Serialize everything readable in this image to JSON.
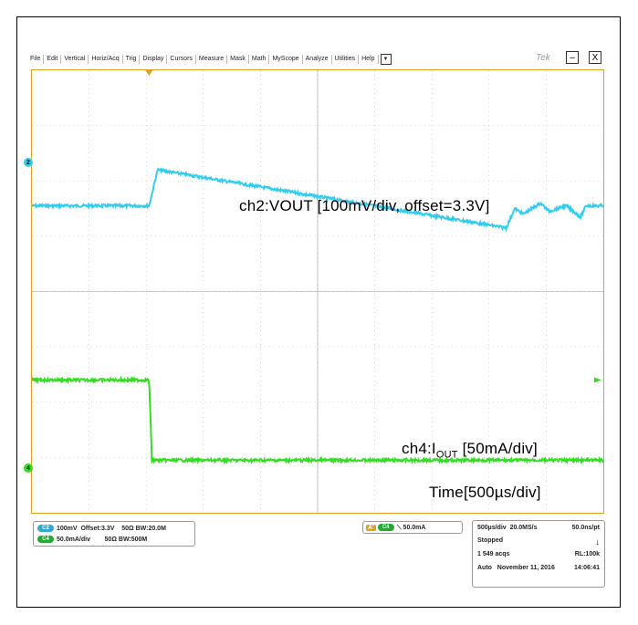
{
  "menu": {
    "items": [
      "File",
      "Edit",
      "Vertical",
      "Horiz/Acq",
      "Trig",
      "Display",
      "Cursors",
      "Measure",
      "Mask",
      "Math",
      "MyScope",
      "Analyze",
      "Utilities",
      "Help"
    ],
    "dropdown_glyph": "▼"
  },
  "brand": "Tek",
  "window": {
    "minimize": "–",
    "close": "X"
  },
  "annotations": {
    "ch2": "ch2:VOUT [100mV/div, offset=3.3V]",
    "ch4_prefix": "ch4:I",
    "ch4_sub": "OUT",
    "ch4_suffix": " [50mA/div]",
    "time": "Time[500µs/div]"
  },
  "markers": {
    "ch2": "2",
    "ch4": "4"
  },
  "channel_settings": {
    "c2_badge": "C2",
    "c2_scale": "100mV",
    "c2_offset": "Offset:3.3V",
    "c2_term": "50Ω",
    "c2_bw": "BW:20.0M",
    "c4_badge": "C4",
    "c4_scale": "50.0mA/div",
    "c4_term": "50Ω",
    "c4_bw": "BW:500M"
  },
  "trigger": {
    "a_label": "A'",
    "badge": "C4",
    "slope": "⟍",
    "level": "50.0mA"
  },
  "acquisition": {
    "timebase": "500µs/div",
    "rate": "20.0MS/s",
    "resolution": "50.0ns/pt",
    "state": "Stopped",
    "acqs": "1 549 acqs",
    "record_length": "RL:100k",
    "mode": "Auto",
    "date": "November 11, 2016",
    "time": "14:06:41"
  },
  "colors": {
    "ch2": "#33ccee",
    "ch4": "#33dd22",
    "border": "#e0a020",
    "grid": "#bbbbbb",
    "trigger": "#e0a020"
  },
  "chart_data": {
    "type": "line",
    "x_divisions": 10,
    "y_divisions": 8,
    "series": [
      {
        "name": "ch2:VOUT",
        "x_div": [
          0,
          2.05,
          2.2,
          8.3,
          8.45,
          8.6,
          8.9,
          9.05,
          9.35,
          9.6,
          9.7,
          10
        ],
        "y_div": [
          5.55,
          5.55,
          6.2,
          5.15,
          5.5,
          5.4,
          5.6,
          5.45,
          5.55,
          5.35,
          5.55,
          5.55
        ]
      },
      {
        "name": "ch4:IOUT",
        "x_div": [
          0,
          2.05,
          2.1,
          10
        ],
        "y_div": [
          2.4,
          2.4,
          0.95,
          0.95
        ]
      }
    ]
  }
}
